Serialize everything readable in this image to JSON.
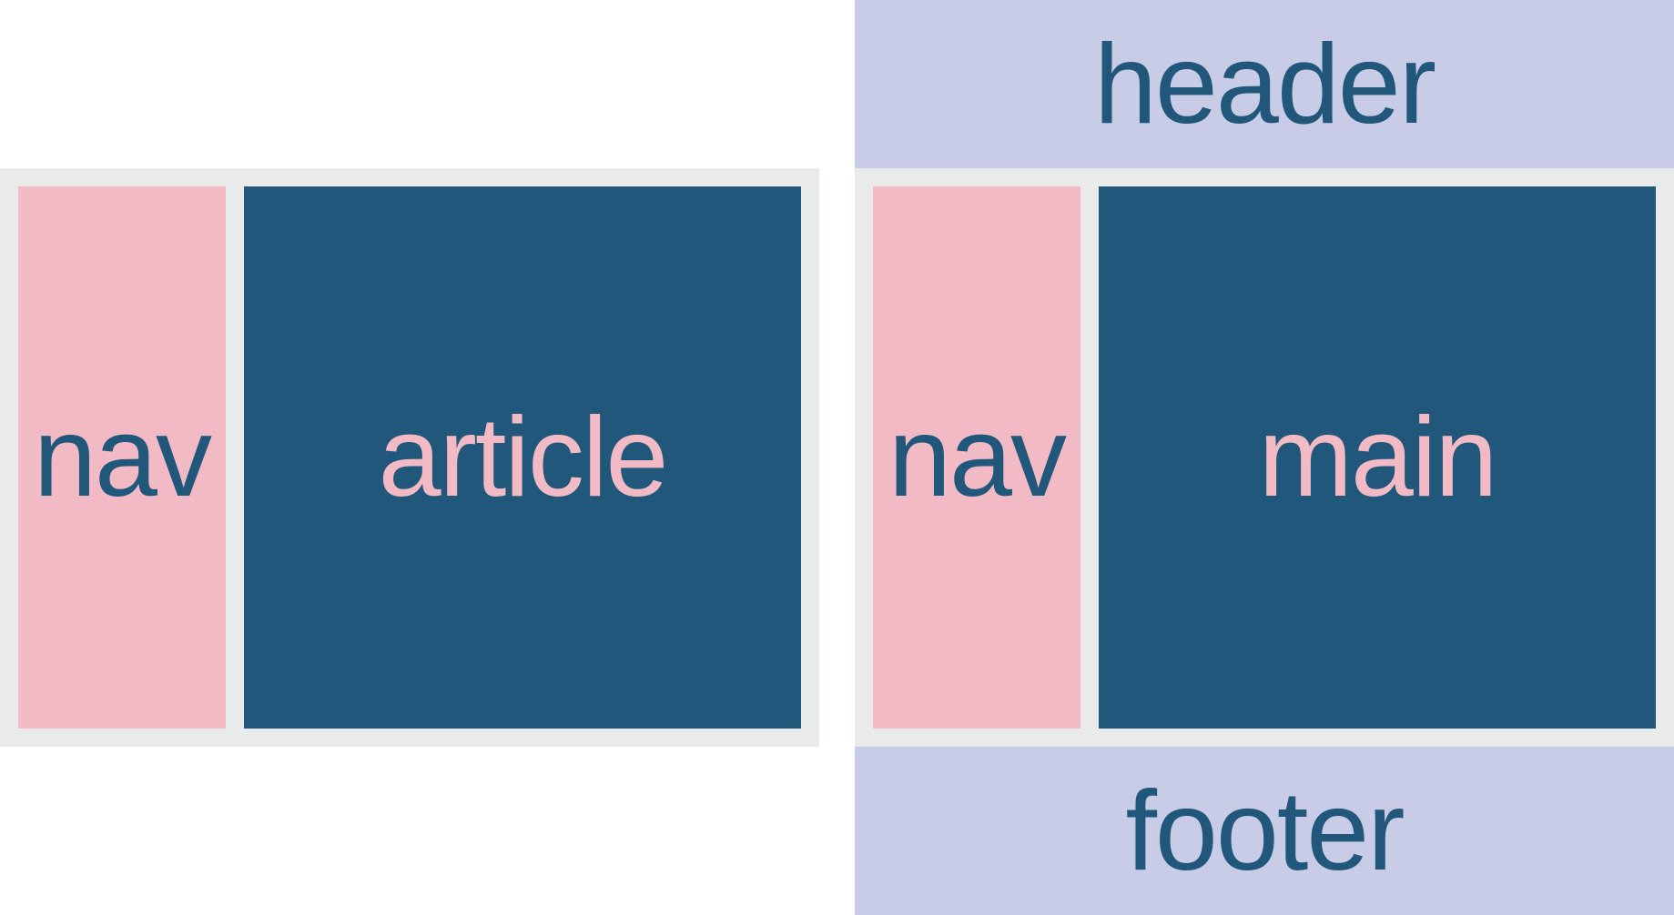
{
  "colors": {
    "background": "#ffffff",
    "wrapper": "#e9eaea",
    "nav": "#f2bac5",
    "content": "#21577a",
    "header_footer": "#c9cce7",
    "dark_text": "#21577a",
    "pink_text": "#f2bac5"
  },
  "left": {
    "nav_label": "nav",
    "content_label": "article"
  },
  "right": {
    "header_label": "header",
    "nav_label": "nav",
    "content_label": "main",
    "footer_label": "footer"
  }
}
